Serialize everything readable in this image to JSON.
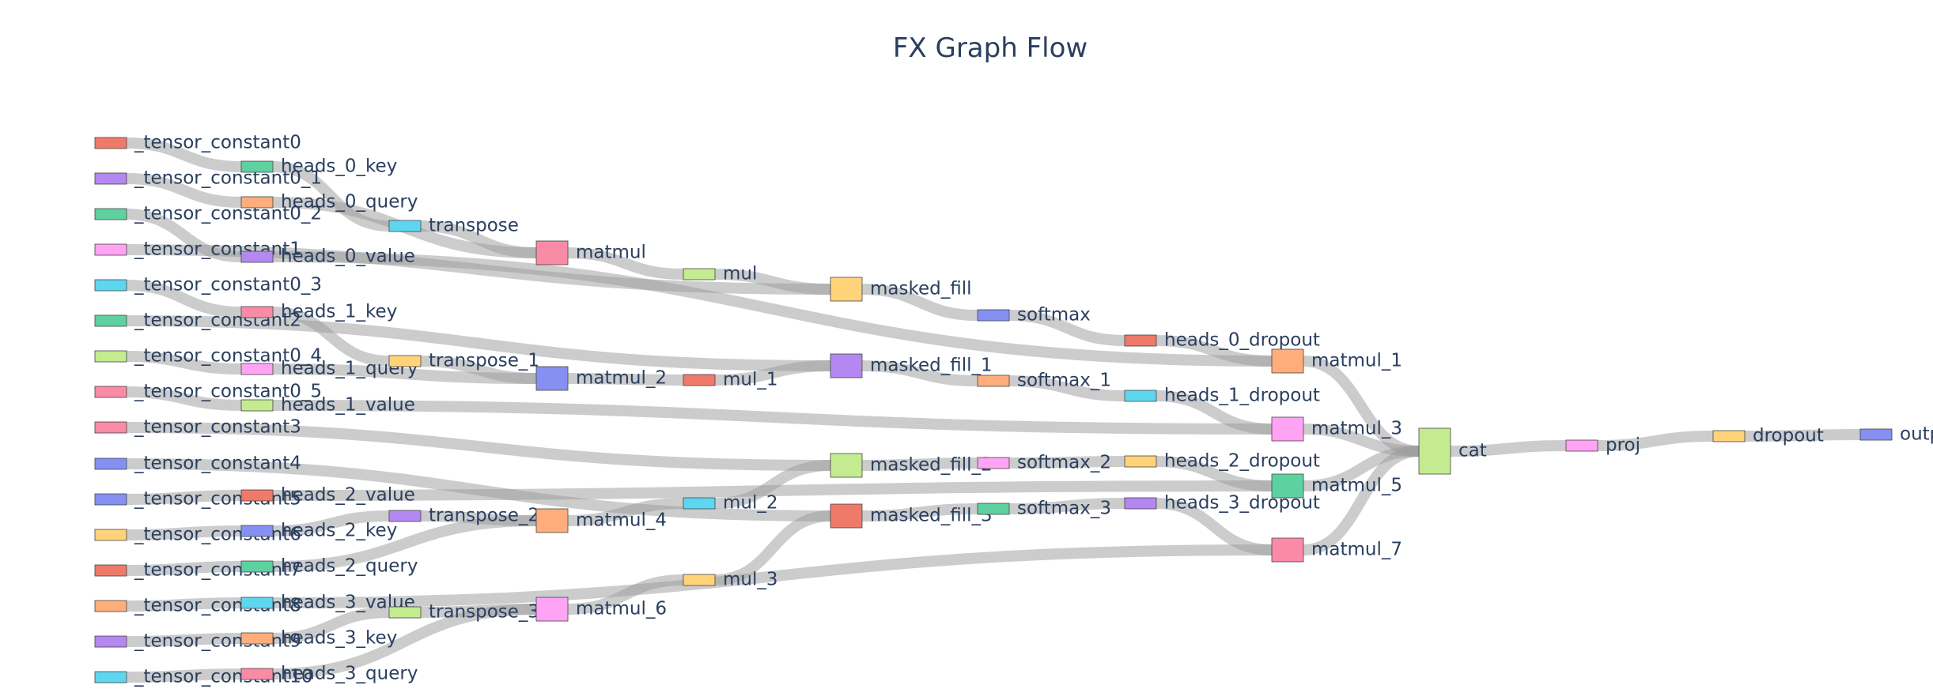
{
  "title": "FX Graph Flow",
  "node_color_palette": [
    "#ef7a6a",
    "#b587f0",
    "#5ed1a0",
    "#ffa3f4",
    "#5fd6ef",
    "#ffd37a",
    "#c4eb8f",
    "#f98ba6",
    "#8590f2",
    "#ffad7a"
  ],
  "link_color": "#9a9a9a",
  "nodes": [
    {
      "id": "tc0",
      "label": "_tensor_constant0",
      "color": "#ef7a6a"
    },
    {
      "id": "tc0_1",
      "label": "_tensor_constant0_1",
      "color": "#b587f0"
    },
    {
      "id": "tc0_2",
      "label": "_tensor_constant0_2",
      "color": "#5ed1a0"
    },
    {
      "id": "tc1",
      "label": "_tensor_constant1",
      "color": "#ffa3f4"
    },
    {
      "id": "tc0_3",
      "label": "_tensor_constant0_3",
      "color": "#5fd6ef"
    },
    {
      "id": "tc2",
      "label": "_tensor_constant2",
      "color": "#5ed1a0"
    },
    {
      "id": "tc0_4",
      "label": "_tensor_constant0_4",
      "color": "#c4eb8f"
    },
    {
      "id": "tc0_5",
      "label": "_tensor_constant0_5",
      "color": "#f98ba6"
    },
    {
      "id": "tc3",
      "label": "_tensor_constant3",
      "color": "#f98ba6"
    },
    {
      "id": "tc4",
      "label": "_tensor_constant4",
      "color": "#8590f2"
    },
    {
      "id": "tc5",
      "label": "_tensor_constant5",
      "color": "#8590f2"
    },
    {
      "id": "tc6",
      "label": "_tensor_constant6",
      "color": "#ffd37a"
    },
    {
      "id": "tc7",
      "label": "_tensor_constant7",
      "color": "#ef7a6a"
    },
    {
      "id": "tc8",
      "label": "_tensor_constant8",
      "color": "#ffad7a"
    },
    {
      "id": "tc9",
      "label": "_tensor_constant9",
      "color": "#b587f0"
    },
    {
      "id": "tc10",
      "label": "_tensor_constant10",
      "color": "#5fd6ef"
    },
    {
      "id": "h0k",
      "label": "heads_0_key",
      "color": "#5ed1a0"
    },
    {
      "id": "h0q",
      "label": "heads_0_query",
      "color": "#ffad7a"
    },
    {
      "id": "h0v",
      "label": "heads_0_value",
      "color": "#b587f0"
    },
    {
      "id": "h1k",
      "label": "heads_1_key",
      "color": "#f98ba6"
    },
    {
      "id": "h1q",
      "label": "heads_1_query",
      "color": "#ffa3f4"
    },
    {
      "id": "h1v",
      "label": "heads_1_value",
      "color": "#c4eb8f"
    },
    {
      "id": "h2v",
      "label": "heads_2_value",
      "color": "#ef7a6a"
    },
    {
      "id": "h2k",
      "label": "heads_2_key",
      "color": "#8590f2"
    },
    {
      "id": "h2q",
      "label": "heads_2_query",
      "color": "#5ed1a0"
    },
    {
      "id": "h3v",
      "label": "heads_3_value",
      "color": "#5fd6ef"
    },
    {
      "id": "h3k",
      "label": "heads_3_key",
      "color": "#ffad7a"
    },
    {
      "id": "h3q",
      "label": "heads_3_query",
      "color": "#f98ba6"
    },
    {
      "id": "tr",
      "label": "transpose",
      "color": "#5fd6ef"
    },
    {
      "id": "tr1",
      "label": "transpose_1",
      "color": "#ffd37a"
    },
    {
      "id": "tr2",
      "label": "transpose_2",
      "color": "#b587f0"
    },
    {
      "id": "tr3",
      "label": "transpose_3",
      "color": "#c4eb8f"
    },
    {
      "id": "mm",
      "label": "matmul",
      "color": "#f98ba6"
    },
    {
      "id": "mm2",
      "label": "matmul_2",
      "color": "#8590f2"
    },
    {
      "id": "mm4",
      "label": "matmul_4",
      "color": "#ffad7a"
    },
    {
      "id": "mm6",
      "label": "matmul_6",
      "color": "#ffa3f4"
    },
    {
      "id": "mul",
      "label": "mul",
      "color": "#c4eb8f"
    },
    {
      "id": "mul1",
      "label": "mul_1",
      "color": "#ef7a6a"
    },
    {
      "id": "mul2",
      "label": "mul_2",
      "color": "#5fd6ef"
    },
    {
      "id": "mul3",
      "label": "mul_3",
      "color": "#ffd37a"
    },
    {
      "id": "mf",
      "label": "masked_fill",
      "color": "#ffd37a"
    },
    {
      "id": "mf1",
      "label": "masked_fill_1",
      "color": "#b587f0"
    },
    {
      "id": "mf2",
      "label": "masked_fill_2",
      "color": "#c4eb8f"
    },
    {
      "id": "mf3",
      "label": "masked_fill_3",
      "color": "#ef7a6a"
    },
    {
      "id": "sm",
      "label": "softmax",
      "color": "#8590f2"
    },
    {
      "id": "sm1",
      "label": "softmax_1",
      "color": "#ffad7a"
    },
    {
      "id": "sm2",
      "label": "softmax_2",
      "color": "#ffa3f4"
    },
    {
      "id": "sm3",
      "label": "softmax_3",
      "color": "#5ed1a0"
    },
    {
      "id": "hd0",
      "label": "heads_0_dropout",
      "color": "#ef7a6a"
    },
    {
      "id": "hd1",
      "label": "heads_1_dropout",
      "color": "#5fd6ef"
    },
    {
      "id": "hd2",
      "label": "heads_2_dropout",
      "color": "#ffd37a"
    },
    {
      "id": "hd3",
      "label": "heads_3_dropout",
      "color": "#b587f0"
    },
    {
      "id": "mm1",
      "label": "matmul_1",
      "color": "#ffad7a"
    },
    {
      "id": "mm3",
      "label": "matmul_3",
      "color": "#ffa3f4"
    },
    {
      "id": "mm5",
      "label": "matmul_5",
      "color": "#5ed1a0"
    },
    {
      "id": "mm7",
      "label": "matmul_7",
      "color": "#f98ba6"
    },
    {
      "id": "cat",
      "label": "cat",
      "color": "#c4eb8f"
    },
    {
      "id": "proj",
      "label": "proj",
      "color": "#ffa3f4"
    },
    {
      "id": "drop",
      "label": "dropout",
      "color": "#ffd37a"
    },
    {
      "id": "out",
      "label": "output",
      "color": "#8590f2"
    }
  ],
  "links": [
    [
      "tc0",
      "h0k",
      1
    ],
    [
      "tc0_1",
      "h0q",
      1
    ],
    [
      "tc0_2",
      "h0v",
      1
    ],
    [
      "tc1",
      "mf",
      1
    ],
    [
      "tc0_3",
      "h1k",
      1
    ],
    [
      "tc2",
      "mf1",
      1
    ],
    [
      "tc0_4",
      "h1q",
      1
    ],
    [
      "tc0_5",
      "h1v",
      1
    ],
    [
      "tc3",
      "mf2",
      1
    ],
    [
      "tc4",
      "mf3",
      1
    ],
    [
      "tc5",
      "h2v",
      1
    ],
    [
      "tc6",
      "h2k",
      1
    ],
    [
      "tc7",
      "h2q",
      1
    ],
    [
      "tc8",
      "h3v",
      1
    ],
    [
      "tc9",
      "h3k",
      1
    ],
    [
      "tc10",
      "h3q",
      1
    ],
    [
      "h0k",
      "tr",
      1
    ],
    [
      "h0q",
      "mm",
      1
    ],
    [
      "tr",
      "mm",
      1
    ],
    [
      "mm",
      "mul",
      1
    ],
    [
      "mul",
      "mf",
      1
    ],
    [
      "mf",
      "sm",
      1
    ],
    [
      "sm",
      "hd0",
      1
    ],
    [
      "hd0",
      "mm1",
      1
    ],
    [
      "h0v",
      "mm1",
      1
    ],
    [
      "h1k",
      "tr1",
      1
    ],
    [
      "h1q",
      "mm2",
      1
    ],
    [
      "tr1",
      "mm2",
      1
    ],
    [
      "mm2",
      "mul1",
      1
    ],
    [
      "mul1",
      "mf1",
      1
    ],
    [
      "mf1",
      "sm1",
      1
    ],
    [
      "sm1",
      "hd1",
      1
    ],
    [
      "hd1",
      "mm3",
      1
    ],
    [
      "h1v",
      "mm3",
      1
    ],
    [
      "h2k",
      "tr2",
      1
    ],
    [
      "h2q",
      "mm4",
      1
    ],
    [
      "tr2",
      "mm4",
      1
    ],
    [
      "mm4",
      "mul2",
      1
    ],
    [
      "mul2",
      "mf2",
      1
    ],
    [
      "mf2",
      "sm2",
      1
    ],
    [
      "sm2",
      "hd2",
      1
    ],
    [
      "hd2",
      "mm5",
      1
    ],
    [
      "h2v",
      "mm5",
      1
    ],
    [
      "h3k",
      "tr3",
      1
    ],
    [
      "h3q",
      "mm6",
      1
    ],
    [
      "tr3",
      "mm6",
      1
    ],
    [
      "mm6",
      "mul3",
      1
    ],
    [
      "mul3",
      "mf3",
      1
    ],
    [
      "mf3",
      "sm3",
      1
    ],
    [
      "sm3",
      "hd3",
      1
    ],
    [
      "hd3",
      "mm7",
      1
    ],
    [
      "h3v",
      "mm7",
      1
    ],
    [
      "mm1",
      "cat",
      1
    ],
    [
      "mm3",
      "cat",
      1
    ],
    [
      "mm5",
      "cat",
      1
    ],
    [
      "mm7",
      "cat",
      1
    ],
    [
      "cat",
      "proj",
      1
    ],
    [
      "proj",
      "drop",
      1
    ],
    [
      "drop",
      "out",
      1
    ]
  ]
}
